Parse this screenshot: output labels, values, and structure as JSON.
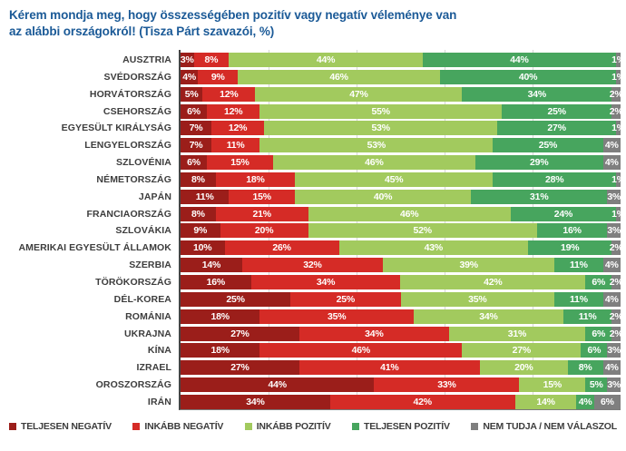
{
  "title": "Kérem mondja meg, hogy összességében pozitív vagy negatív véleménye van\naz alábbi országokról! (Tisza Párt szavazói, %)",
  "colors": {
    "title_blue": "#1b5a97",
    "axis": "#454545",
    "gridline": "#d6d6d6",
    "category_label": "#3d3d3d",
    "value_label": "#ffffff",
    "background": "#ffffff"
  },
  "chart_data": {
    "type": "bar",
    "orientation": "horizontal",
    "stacked": true,
    "title": "Kérem mondja meg, hogy összességében pozitív vagy negatív véleménye van az alábbi országokról! (Tisza Párt szavazói, %)",
    "xlabel": "",
    "ylabel": "",
    "xlim": [
      0,
      100
    ],
    "value_suffix": "%",
    "gridlines_percent": [
      20,
      40,
      60,
      80
    ],
    "legend_position": "bottom",
    "categories": [
      "AUSZTRIA",
      "SVÉDORSZÁG",
      "HORVÁTORSZÁG",
      "CSEHORSZÁG",
      "EGYESÜLT KIRÁLYSÁG",
      "LENGYELORSZÁG",
      "SZLOVÉNIA",
      "NÉMETORSZÁG",
      "JAPÁN",
      "FRANCIAORSZÁG",
      "SZLOVÁKIA",
      "AMERIKAI EGYESÜLT ÁLLAMOK",
      "SZERBIA",
      "TÖRÖKORSZÁG",
      "DÉL-KOREA",
      "ROMÁNIA",
      "UKRAJNA",
      "KÍNA",
      "IZRAEL",
      "OROSZORSZÁG",
      "IRÁN"
    ],
    "series": [
      {
        "key": "teljesen-negativ",
        "name": "TELJESEN NEGATÍV",
        "color": "#9b1e1a",
        "values": [
          3,
          4,
          5,
          6,
          7,
          7,
          6,
          8,
          11,
          8,
          9,
          10,
          14,
          16,
          25,
          18,
          27,
          18,
          27,
          44,
          34
        ]
      },
      {
        "key": "inkabb-negativ",
        "name": "INKÁBB NEGATÍV",
        "color": "#d52b26",
        "values": [
          8,
          9,
          12,
          12,
          12,
          11,
          15,
          18,
          15,
          21,
          20,
          26,
          32,
          34,
          25,
          35,
          34,
          46,
          41,
          33,
          42
        ]
      },
      {
        "key": "inkabb-pozitiv",
        "name": "INKÁBB POZITÍV",
        "color": "#a2ca5e",
        "values": [
          44,
          46,
          47,
          55,
          53,
          53,
          46,
          45,
          40,
          46,
          52,
          43,
          39,
          42,
          35,
          34,
          31,
          27,
          20,
          15,
          14
        ]
      },
      {
        "key": "teljesen-pozitiv",
        "name": "TELJESEN POZITÍV",
        "color": "#47a55e",
        "values": [
          44,
          40,
          34,
          25,
          27,
          25,
          29,
          28,
          31,
          24,
          16,
          19,
          11,
          6,
          11,
          11,
          6,
          6,
          8,
          5,
          4
        ]
      },
      {
        "key": "nem-tudja",
        "name": "NEM TUDJA / NEM VÁLASZOL",
        "color": "#7f7f7f",
        "values": [
          1,
          1,
          2,
          2,
          1,
          4,
          4,
          1,
          3,
          1,
          3,
          2,
          4,
          2,
          4,
          2,
          2,
          3,
          4,
          3,
          6
        ]
      }
    ]
  }
}
